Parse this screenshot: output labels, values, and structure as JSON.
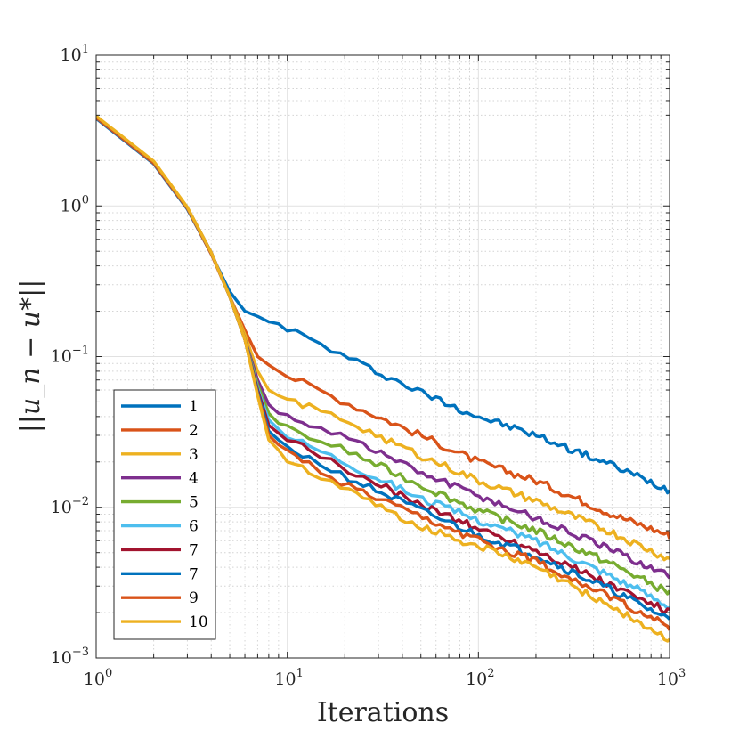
{
  "chart_data": {
    "type": "line",
    "xscale": "log",
    "yscale": "log",
    "xlabel": "Iterations",
    "ylabel": "||u_n − u*||",
    "xlim": [
      1,
      1000
    ],
    "ylim": [
      0.001,
      10
    ],
    "x_ticks": [
      {
        "base": "10",
        "exp": "0",
        "value": 1
      },
      {
        "base": "10",
        "exp": "1",
        "value": 10
      },
      {
        "base": "10",
        "exp": "2",
        "value": 100
      },
      {
        "base": "10",
        "exp": "3",
        "value": 1000
      }
    ],
    "y_ticks": [
      {
        "base": "10",
        "exp": "−3",
        "value": 0.001
      },
      {
        "base": "10",
        "exp": "−2",
        "value": 0.01
      },
      {
        "base": "10",
        "exp": "−1",
        "value": 0.1
      },
      {
        "base": "10",
        "exp": "0",
        "value": 1
      },
      {
        "base": "10",
        "exp": "1",
        "value": 10
      }
    ],
    "grid": true,
    "legend_position": "bottom-left",
    "x": [
      1,
      2,
      3,
      4,
      5,
      6,
      7,
      8,
      9,
      10,
      20,
      50,
      100,
      200,
      500,
      1000
    ],
    "series": [
      {
        "name": "1",
        "color": "#0072BD",
        "values": [
          3.8,
          1.9,
          0.95,
          0.48,
          0.27,
          0.2,
          0.185,
          0.17,
          0.165,
          0.155,
          0.1,
          0.058,
          0.04,
          0.03,
          0.019,
          0.013
        ]
      },
      {
        "name": "2",
        "color": "#D95319",
        "values": [
          3.85,
          1.92,
          0.96,
          0.48,
          0.25,
          0.15,
          0.1,
          0.088,
          0.08,
          0.075,
          0.05,
          0.03,
          0.02,
          0.015,
          0.009,
          0.0065
        ]
      },
      {
        "name": "3",
        "color": "#EDB120",
        "values": [
          3.9,
          1.95,
          0.97,
          0.49,
          0.25,
          0.14,
          0.08,
          0.06,
          0.055,
          0.052,
          0.038,
          0.022,
          0.015,
          0.011,
          0.0068,
          0.0045
        ]
      },
      {
        "name": "4",
        "color": "#7E2F8E",
        "values": [
          3.9,
          1.95,
          0.97,
          0.49,
          0.25,
          0.13,
          0.07,
          0.048,
          0.042,
          0.04,
          0.03,
          0.017,
          0.012,
          0.0085,
          0.0052,
          0.0035
        ]
      },
      {
        "name": "5",
        "color": "#77AC30",
        "values": [
          3.9,
          1.95,
          0.97,
          0.49,
          0.25,
          0.13,
          0.065,
          0.042,
          0.036,
          0.033,
          0.024,
          0.014,
          0.0095,
          0.007,
          0.0042,
          0.0027
        ]
      },
      {
        "name": "6",
        "color": "#4DBEEE",
        "values": [
          3.9,
          1.95,
          0.97,
          0.49,
          0.25,
          0.13,
          0.062,
          0.038,
          0.033,
          0.03,
          0.02,
          0.0115,
          0.0082,
          0.006,
          0.0035,
          0.0022
        ]
      },
      {
        "name": "7",
        "color": "#A2142F",
        "values": [
          3.9,
          1.95,
          0.97,
          0.49,
          0.25,
          0.13,
          0.06,
          0.035,
          0.031,
          0.028,
          0.018,
          0.0105,
          0.0072,
          0.0052,
          0.003,
          0.002
        ]
      },
      {
        "name": "7",
        "color": "#0072BD",
        "values": [
          3.9,
          1.95,
          0.97,
          0.49,
          0.25,
          0.13,
          0.058,
          0.032,
          0.028,
          0.025,
          0.016,
          0.0095,
          0.0065,
          0.0048,
          0.0028,
          0.0018
        ]
      },
      {
        "name": "9",
        "color": "#D95319",
        "values": [
          3.9,
          1.95,
          0.97,
          0.49,
          0.25,
          0.13,
          0.056,
          0.03,
          0.026,
          0.023,
          0.014,
          0.0085,
          0.006,
          0.0044,
          0.0025,
          0.0016
        ]
      },
      {
        "name": "10",
        "color": "#EDB120",
        "values": [
          3.95,
          1.98,
          0.98,
          0.49,
          0.25,
          0.13,
          0.055,
          0.028,
          0.024,
          0.021,
          0.013,
          0.0075,
          0.0055,
          0.004,
          0.0022,
          0.0013
        ]
      }
    ]
  }
}
